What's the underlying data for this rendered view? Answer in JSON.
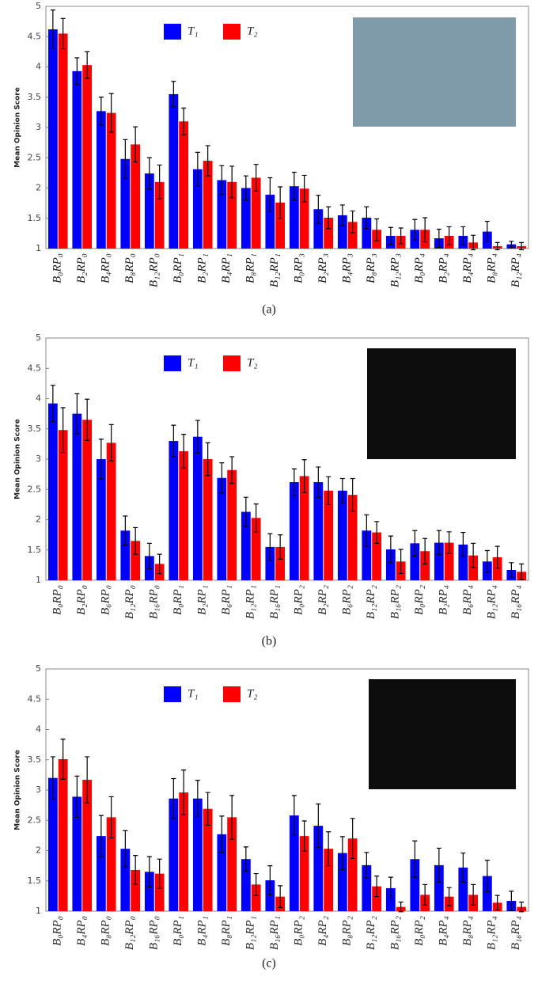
{
  "chart_data": [
    {
      "type": "bar",
      "caption": "(a)",
      "ylabel": "Mean Opinion Score",
      "categories": [
        "B₀RP₀",
        "B₂RP₀",
        "B₄RP₀",
        "B₈RP₀",
        "B₁₂RP₀",
        "B₀RP₁",
        "B₂RP₁",
        "B₄RP₁",
        "B₈RP₁",
        "B₁₂RP₁",
        "B₀RP₃",
        "B₂RP₃",
        "B₄RP₃",
        "B₈RP₃",
        "B₁₂RP₃",
        "B₀RP₄",
        "B₂RP₄",
        "B₄RP₄",
        "B₈RP₄",
        "B₁₂RP₄"
      ],
      "series": [
        {
          "name": "T₁",
          "color": "#0000ff",
          "values": [
            4.62,
            3.93,
            3.27,
            2.48,
            2.24,
            3.55,
            2.31,
            2.13,
            2.0,
            1.89,
            2.03,
            1.65,
            1.55,
            1.51,
            1.21,
            1.31,
            1.17,
            1.21,
            1.28,
            1.07
          ],
          "errors": [
            0.32,
            0.22,
            0.23,
            0.32,
            0.26,
            0.21,
            0.28,
            0.24,
            0.2,
            0.28,
            0.23,
            0.23,
            0.17,
            0.18,
            0.14,
            0.17,
            0.15,
            0.15,
            0.17,
            0.05
          ]
        },
        {
          "name": "T₂",
          "color": "#ff0000",
          "values": [
            4.55,
            4.03,
            3.24,
            2.72,
            2.1,
            3.1,
            2.45,
            2.1,
            2.17,
            1.76,
            1.99,
            1.51,
            1.44,
            1.31,
            1.21,
            1.31,
            1.21,
            1.1,
            1.04,
            1.04
          ],
          "errors": [
            0.25,
            0.22,
            0.32,
            0.29,
            0.28,
            0.22,
            0.25,
            0.26,
            0.22,
            0.26,
            0.22,
            0.18,
            0.18,
            0.18,
            0.13,
            0.2,
            0.15,
            0.12,
            0.06,
            0.06
          ]
        }
      ],
      "ylim": [
        1,
        5
      ],
      "yticks": [
        1,
        1.5,
        2,
        2.5,
        3,
        3.5,
        4,
        4.5,
        5
      ]
    },
    {
      "type": "bar",
      "caption": "(b)",
      "ylabel": "Mean Opinion Score",
      "categories": [
        "B₀RP₀",
        "B₂RP₀",
        "B₆RP₀",
        "B₁₂RP₀",
        "B₁₆RP₀",
        "B₀RP₁",
        "B₂RP₁",
        "B₆RP₁",
        "B₁₂RP₁",
        "B₁₆RP₁",
        "B₀RP₂",
        "B₂RP₂",
        "B₆RP₂",
        "B₁₂RP₂",
        "B₁₆RP₂",
        "B₀RP₂",
        "B₂RP₄",
        "B₆RP₄",
        "B₁₂RP₄",
        "B₁₆RP₄"
      ],
      "series": [
        {
          "name": "T₁",
          "color": "#0000ff",
          "values": [
            3.92,
            3.75,
            3.0,
            1.82,
            1.4,
            3.3,
            3.37,
            2.69,
            2.13,
            1.55,
            2.62,
            2.62,
            2.48,
            1.82,
            1.51,
            1.61,
            1.62,
            1.59,
            1.31,
            1.17
          ],
          "errors": [
            0.3,
            0.33,
            0.33,
            0.24,
            0.21,
            0.26,
            0.27,
            0.25,
            0.24,
            0.22,
            0.22,
            0.25,
            0.2,
            0.26,
            0.22,
            0.21,
            0.2,
            0.2,
            0.18,
            0.12
          ]
        },
        {
          "name": "T₂",
          "color": "#ff0000",
          "values": [
            3.48,
            3.65,
            3.27,
            1.65,
            1.27,
            3.13,
            3.0,
            2.82,
            2.03,
            1.55,
            2.72,
            2.48,
            2.41,
            1.79,
            1.31,
            1.48,
            1.62,
            1.41,
            1.38,
            1.14
          ],
          "errors": [
            0.37,
            0.34,
            0.3,
            0.22,
            0.16,
            0.28,
            0.27,
            0.22,
            0.23,
            0.2,
            0.27,
            0.23,
            0.27,
            0.18,
            0.2,
            0.21,
            0.18,
            0.2,
            0.18,
            0.13
          ]
        }
      ],
      "ylim": [
        1,
        5
      ],
      "yticks": [
        1,
        1.5,
        2,
        2.5,
        3,
        3.5,
        4,
        4.5,
        5
      ]
    },
    {
      "type": "bar",
      "caption": "(c)",
      "ylabel": "Mean Opinion Score",
      "categories": [
        "B₀RP₀",
        "B₄RP₀",
        "B₈RP₀",
        "B₁₂RP₀",
        "B₁₆RP₀",
        "B₀RP₁",
        "B₄RP₁",
        "B₈RP₁",
        "B₁₂RP₁",
        "B₁₆RP₁",
        "B₀RP₂",
        "B₄RP₂",
        "B₈RP₂",
        "B₁₂RP₂",
        "B₁₆RP₂",
        "B₀RP₂",
        "B₄RP₄",
        "B₈RP₄",
        "B₁₂RP₄",
        "B₁₆RP₄"
      ],
      "series": [
        {
          "name": "T₁",
          "color": "#0000ff",
          "values": [
            3.2,
            2.89,
            2.24,
            2.03,
            1.65,
            2.86,
            2.86,
            2.27,
            1.86,
            1.51,
            2.58,
            2.41,
            1.96,
            1.76,
            1.38,
            1.86,
            1.76,
            1.72,
            1.58,
            1.17
          ],
          "errors": [
            0.35,
            0.34,
            0.34,
            0.3,
            0.25,
            0.33,
            0.3,
            0.3,
            0.2,
            0.24,
            0.33,
            0.36,
            0.27,
            0.21,
            0.18,
            0.3,
            0.28,
            0.24,
            0.26,
            0.16
          ]
        },
        {
          "name": "T₂",
          "color": "#ff0000",
          "values": [
            3.51,
            3.17,
            2.55,
            1.68,
            1.62,
            2.96,
            2.69,
            2.55,
            1.44,
            1.24,
            2.24,
            2.03,
            2.2,
            1.41,
            1.07,
            1.27,
            1.24,
            1.27,
            1.14,
            1.07
          ],
          "errors": [
            0.33,
            0.38,
            0.34,
            0.24,
            0.24,
            0.37,
            0.27,
            0.36,
            0.18,
            0.18,
            0.25,
            0.28,
            0.33,
            0.17,
            0.08,
            0.17,
            0.15,
            0.17,
            0.12,
            0.08
          ]
        }
      ],
      "ylim": [
        1,
        5
      ],
      "yticks": [
        1,
        1.5,
        2,
        2.5,
        3,
        3.5,
        4,
        4.5,
        5
      ]
    }
  ]
}
